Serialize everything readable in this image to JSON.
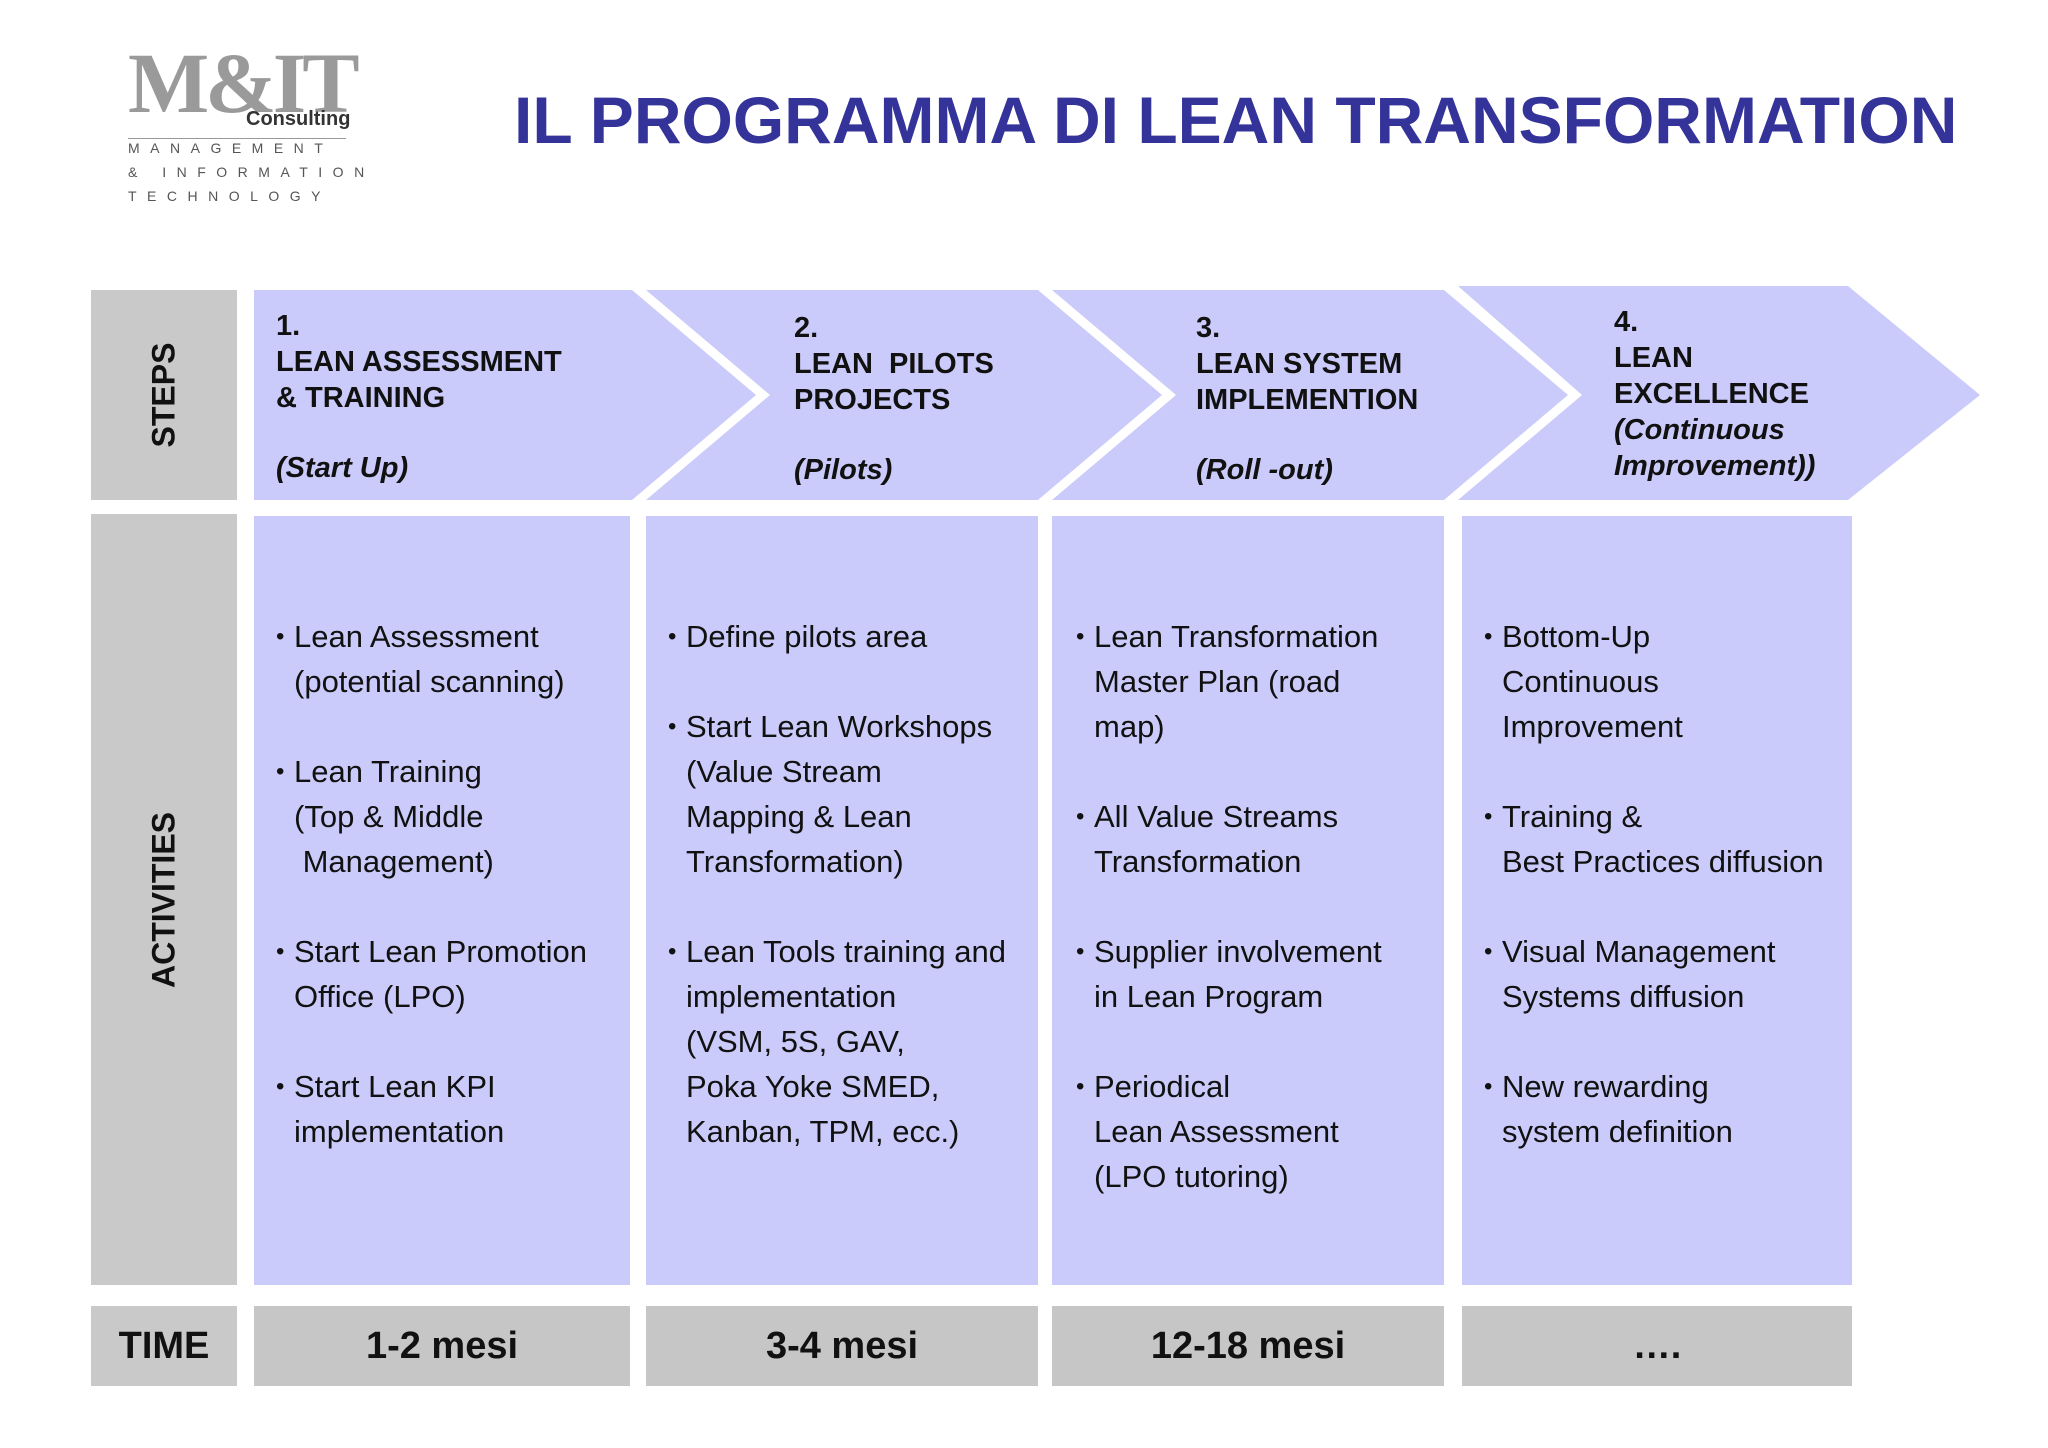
{
  "logo": {
    "mark": "M&IT",
    "consulting": "Consulting",
    "line1": "MANAGEMENT",
    "line2": "& INFORMATION",
    "line3": "TECHNOLOGY"
  },
  "title": "IL PROGRAMMA DI LEAN TRANSFORMATION",
  "rows": {
    "steps": "STEPS",
    "activities": "ACTIVITIES",
    "time": "TIME"
  },
  "colors": {
    "title": "#343399",
    "chevron": "#cbcbfb",
    "row_label_bg": "#c9c9c9",
    "time_bg": "#c6c6c6"
  },
  "steps": [
    {
      "number": "1.",
      "name_lines": [
        "LEAN ASSESSMENT",
        "& TRAINING"
      ],
      "subtitle": "(Start Up)"
    },
    {
      "number": "2.",
      "name_lines": [
        "LEAN  PILOTS",
        "PROJECTS"
      ],
      "subtitle": "(Pilots)"
    },
    {
      "number": "3.",
      "name_lines": [
        "LEAN SYSTEM",
        "IMPLEMENTION"
      ],
      "subtitle": "(Roll -out)"
    },
    {
      "number": "4.",
      "name_lines": [
        "LEAN",
        "EXCELLENCE",
        "(Continuous",
        "Improvement))"
      ],
      "subtitle": ""
    }
  ],
  "activities": [
    [
      "Lean Assessment\n(potential scanning)",
      "Lean Training\n(Top & Middle\n Management)",
      "Start Lean Promotion\nOffice (LPO)",
      "Start Lean KPI\nimplementation"
    ],
    [
      "Define pilots area",
      "Start Lean Workshops\n(Value Stream\nMapping & Lean\nTransformation)",
      "Lean Tools training and\nimplementation\n(VSM, 5S, GAV,\nPoka Yoke SMED,\nKanban, TPM, ecc.)"
    ],
    [
      "Lean Transformation\nMaster Plan (road\nmap)",
      "All Value Streams\nTransformation",
      "Supplier involvement\nin Lean Program",
      "Periodical\nLean Assessment\n(LPO tutoring)"
    ],
    [
      "Bottom-Up\nContinuous\nImprovement",
      "Training &\nBest Practices diffusion",
      "Visual Management\nSystems diffusion",
      "New rewarding\nsystem definition"
    ]
  ],
  "time": [
    "1-2 mesi",
    "3-4 mesi",
    "12-18 mesi",
    "…."
  ]
}
